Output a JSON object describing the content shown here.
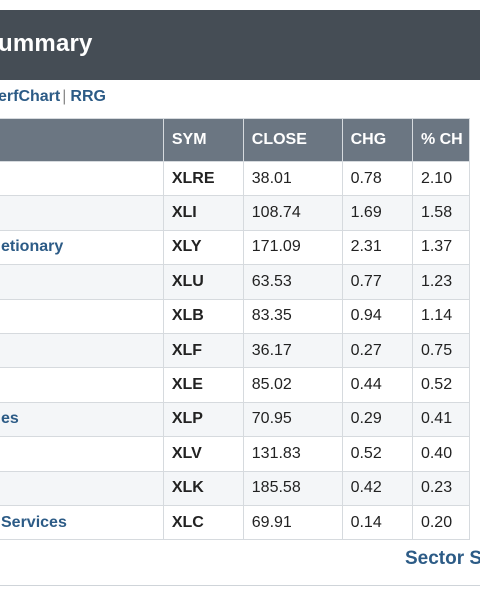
{
  "header": {
    "title": "ummary"
  },
  "links": {
    "perfchart": "erfChart",
    "rrg": "RRG"
  },
  "table": {
    "columns": [
      "",
      "SYM",
      "CLOSE",
      "CHG",
      "% CH"
    ],
    "rows": [
      {
        "sector": "",
        "sym": "XLRE",
        "close": "38.01",
        "chg": "0.78",
        "pct": "2.10"
      },
      {
        "sector": "",
        "sym": "XLI",
        "close": "108.74",
        "chg": "1.69",
        "pct": "1.58"
      },
      {
        "sector": "etionary",
        "sym": "XLY",
        "close": "171.09",
        "chg": "2.31",
        "pct": "1.37"
      },
      {
        "sector": "",
        "sym": "XLU",
        "close": "63.53",
        "chg": "0.77",
        "pct": "1.23"
      },
      {
        "sector": "",
        "sym": "XLB",
        "close": "83.35",
        "chg": "0.94",
        "pct": "1.14"
      },
      {
        "sector": "",
        "sym": "XLF",
        "close": "36.17",
        "chg": "0.27",
        "pct": "0.75"
      },
      {
        "sector": "",
        "sym": "XLE",
        "close": "85.02",
        "chg": "0.44",
        "pct": "0.52"
      },
      {
        "sector": "es",
        "sym": "XLP",
        "close": "70.95",
        "chg": "0.29",
        "pct": "0.41"
      },
      {
        "sector": "",
        "sym": "XLV",
        "close": "131.83",
        "chg": "0.52",
        "pct": "0.40"
      },
      {
        "sector": "",
        "sym": "XLK",
        "close": "185.58",
        "chg": "0.42",
        "pct": "0.23"
      },
      {
        "sector": "Services",
        "sym": "XLC",
        "close": "69.91",
        "chg": "0.14",
        "pct": "0.20"
      }
    ]
  },
  "footer": {
    "link": "Sector S"
  }
}
